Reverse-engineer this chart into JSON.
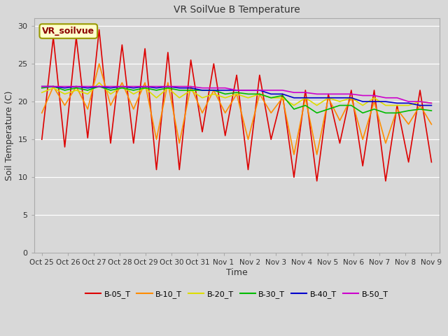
{
  "title": "VR SoilVue B Temperature",
  "xlabel": "Time",
  "ylabel": "Soil Temperature (C)",
  "ylim": [
    0,
    31
  ],
  "yticks": [
    0,
    5,
    10,
    15,
    20,
    25,
    30
  ],
  "fig_bg_color": "#d8d8d8",
  "plot_bg_color": "#d8d8d8",
  "grid_color": "#ffffff",
  "annotation_text": "VR_soilvue",
  "annotation_fg": "#8B0000",
  "annotation_bg": "#ffffcc",
  "annotation_edge": "#999900",
  "x_tick_labels": [
    "Oct 25",
    "Oct 26",
    "Oct 27",
    "Oct 28",
    "Oct 29",
    "Oct 30",
    "Oct 31",
    "Nov 1",
    "Nov 2",
    "Nov 3",
    "Nov 4",
    "Nov 5",
    "Nov 6",
    "Nov 7",
    "Nov 8",
    "Nov 9"
  ],
  "series_order": [
    "B-05_T",
    "B-10_T",
    "B-20_T",
    "B-30_T",
    "B-40_T",
    "B-50_T"
  ],
  "series": {
    "B-05_T": {
      "color": "#dd0000",
      "linewidth": 1.2,
      "values": [
        15.0,
        28.5,
        14.0,
        28.5,
        15.2,
        29.5,
        14.5,
        27.5,
        14.5,
        27.0,
        11.0,
        26.5,
        11.0,
        25.5,
        16.0,
        25.0,
        15.5,
        23.5,
        11.0,
        23.5,
        15.0,
        21.0,
        10.0,
        21.5,
        9.5,
        21.0,
        14.5,
        21.5,
        11.5,
        21.5,
        9.5,
        19.5,
        12.0,
        21.5,
        12.0
      ]
    },
    "B-10_T": {
      "color": "#ff8c00",
      "linewidth": 1.2,
      "values": [
        18.5,
        22.0,
        19.5,
        22.0,
        19.0,
        25.0,
        19.5,
        22.5,
        19.0,
        22.5,
        15.0,
        22.5,
        14.5,
        22.0,
        18.5,
        21.5,
        18.5,
        21.0,
        15.0,
        21.0,
        18.5,
        20.5,
        13.0,
        20.5,
        13.0,
        20.5,
        17.5,
        20.5,
        15.0,
        20.0,
        14.5,
        19.0,
        17.0,
        19.5,
        17.0
      ]
    },
    "B-20_T": {
      "color": "#dddd00",
      "linewidth": 1.2,
      "values": [
        21.2,
        21.8,
        21.0,
        21.5,
        21.0,
        22.5,
        21.0,
        22.0,
        21.0,
        21.8,
        20.5,
        21.8,
        20.5,
        21.5,
        20.5,
        21.0,
        20.5,
        21.0,
        20.5,
        21.0,
        20.5,
        20.5,
        19.5,
        20.5,
        19.5,
        20.5,
        20.0,
        20.5,
        19.5,
        20.5,
        19.5,
        19.5,
        19.5,
        20.0,
        19.8
      ]
    },
    "B-30_T": {
      "color": "#00bb00",
      "linewidth": 1.2,
      "values": [
        21.8,
        22.0,
        21.5,
        21.8,
        21.5,
        22.0,
        21.5,
        21.8,
        21.5,
        21.8,
        21.5,
        21.8,
        21.5,
        21.5,
        21.5,
        21.5,
        21.0,
        21.2,
        21.0,
        21.0,
        20.5,
        20.8,
        19.0,
        19.5,
        18.5,
        19.0,
        19.5,
        19.5,
        18.5,
        19.0,
        18.5,
        18.5,
        18.8,
        19.0,
        18.8
      ]
    },
    "B-40_T": {
      "color": "#0000cc",
      "linewidth": 1.2,
      "values": [
        22.0,
        22.0,
        21.8,
        22.0,
        21.8,
        22.0,
        21.8,
        22.0,
        21.8,
        22.0,
        21.8,
        22.0,
        21.8,
        21.8,
        21.5,
        21.5,
        21.5,
        21.5,
        21.5,
        21.5,
        21.0,
        21.0,
        20.5,
        20.5,
        20.5,
        20.5,
        20.5,
        20.5,
        20.0,
        20.0,
        20.0,
        19.8,
        19.8,
        19.5,
        19.5
      ]
    },
    "B-50_T": {
      "color": "#cc00cc",
      "linewidth": 1.2,
      "values": [
        22.0,
        22.0,
        22.0,
        22.0,
        22.0,
        22.0,
        22.0,
        22.0,
        22.0,
        22.0,
        22.0,
        22.0,
        22.0,
        22.0,
        21.8,
        21.8,
        21.8,
        21.5,
        21.5,
        21.5,
        21.5,
        21.5,
        21.2,
        21.2,
        21.0,
        21.0,
        21.0,
        21.0,
        20.8,
        20.8,
        20.5,
        20.5,
        20.0,
        20.0,
        19.8
      ]
    }
  }
}
